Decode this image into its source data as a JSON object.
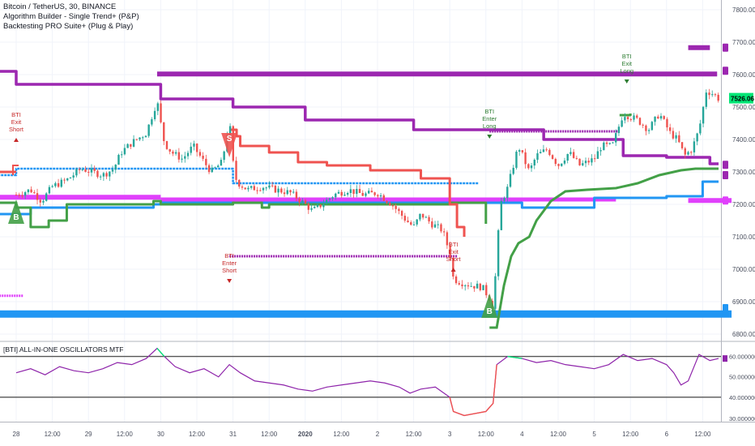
{
  "legend": {
    "symbol": "Bitcoin / TetherUS, 30, BINANCE",
    "indicator1": "Algorithm Builder - Single Trend+ (P&P)",
    "indicator2": "Backtesting PRO Suite+ (Plug & Play)",
    "oscillator": "[BTI] ALL-IN-ONE OSCILLATORS MTF"
  },
  "colors": {
    "purple": "#9c27b0",
    "magenta": "#e040fb",
    "blue": "#2196f3",
    "green": "#43a047",
    "red": "#ef5350",
    "dark_red": "#c62828",
    "osc_purple": "#8e24aa",
    "price_tag": "#00e676",
    "grid": "#f0f3fa",
    "axis_text": "#4a4f5e"
  },
  "chart_data": [
    {
      "type": "candlestick",
      "title": "Bitcoin / TetherUS, 30, BINANCE",
      "price_axis_ticks": [
        6800,
        6900,
        7000,
        7100,
        7200,
        7300,
        7400,
        7500,
        7600,
        7700,
        7800
      ],
      "price_axis_labels": [
        "6800.00",
        "6900.00",
        "7000.00",
        "7100.00",
        "7200.00",
        "7300.00",
        "7400.00",
        "7500.00",
        "7600.00",
        "7700.00",
        "7800.00"
      ],
      "last_price": "7526.06",
      "ylim": [
        6780,
        7830
      ],
      "x_tick_labels": [
        "28",
        "12:00",
        "29",
        "12:00",
        "30",
        "12:00",
        "31",
        "12:00",
        "2020",
        "12:00",
        "2",
        "12:00",
        "3",
        "12:00",
        "4",
        "12:00",
        "5",
        "12:00",
        "6",
        "12:00"
      ],
      "x_tick_days": [
        0,
        0.5,
        1,
        1.5,
        2,
        2.5,
        3,
        3.5,
        4,
        4.5,
        5,
        5.5,
        6,
        6.5,
        7,
        7.5,
        8,
        8.5,
        9,
        9.5
      ],
      "price_path": [
        [
          0.0,
          7230
        ],
        [
          0.2,
          7245
        ],
        [
          0.35,
          7210
        ],
        [
          0.5,
          7255
        ],
        [
          0.7,
          7275
        ],
        [
          0.9,
          7310
        ],
        [
          1.05,
          7300
        ],
        [
          1.2,
          7290
        ],
        [
          1.35,
          7310
        ],
        [
          1.45,
          7360
        ],
        [
          1.6,
          7390
        ],
        [
          1.8,
          7420
        ],
        [
          1.95,
          7520
        ],
        [
          2.0,
          7450
        ],
        [
          2.05,
          7390
        ],
        [
          2.15,
          7360
        ],
        [
          2.3,
          7340
        ],
        [
          2.45,
          7380
        ],
        [
          2.6,
          7330
        ],
        [
          2.7,
          7300
        ],
        [
          2.85,
          7330
        ],
        [
          2.95,
          7460
        ],
        [
          3.0,
          7330
        ],
        [
          3.05,
          7270
        ],
        [
          3.2,
          7245
        ],
        [
          3.4,
          7255
        ],
        [
          3.6,
          7245
        ],
        [
          3.8,
          7235
        ],
        [
          4.0,
          7200
        ],
        [
          4.1,
          7180
        ],
        [
          4.2,
          7195
        ],
        [
          4.4,
          7230
        ],
        [
          4.6,
          7245
        ],
        [
          4.8,
          7230
        ],
        [
          5.0,
          7235
        ],
        [
          5.2,
          7200
        ],
        [
          5.4,
          7150
        ],
        [
          5.5,
          7130
        ],
        [
          5.6,
          7170
        ],
        [
          5.75,
          7140
        ],
        [
          5.9,
          7120
        ],
        [
          6.0,
          7050
        ],
        [
          6.05,
          6970
        ],
        [
          6.15,
          6960
        ],
        [
          6.3,
          6950
        ],
        [
          6.45,
          6945
        ],
        [
          6.55,
          6910
        ],
        [
          6.6,
          6880
        ],
        [
          6.7,
          7200
        ],
        [
          6.8,
          7250
        ],
        [
          6.95,
          7380
        ],
        [
          7.1,
          7300
        ],
        [
          7.2,
          7350
        ],
        [
          7.35,
          7370
        ],
        [
          7.5,
          7320
        ],
        [
          7.65,
          7360
        ],
        [
          7.8,
          7320
        ],
        [
          8.0,
          7340
        ],
        [
          8.1,
          7380
        ],
        [
          8.25,
          7380
        ],
        [
          8.4,
          7480
        ],
        [
          8.6,
          7460
        ],
        [
          8.75,
          7430
        ],
        [
          8.9,
          7480
        ],
        [
          9.05,
          7420
        ],
        [
          9.15,
          7400
        ],
        [
          9.25,
          7350
        ],
        [
          9.35,
          7370
        ],
        [
          9.45,
          7430
        ],
        [
          9.55,
          7550
        ],
        [
          9.65,
          7540
        ],
        [
          9.72,
          7526
        ]
      ],
      "annotations": [
        {
          "text": [
            "BTI",
            "Exit",
            "Short"
          ],
          "day": 0.0,
          "price": 7470,
          "arrow": "up",
          "color": "#c62828"
        },
        {
          "text": [
            "BTI",
            "Enter",
            "Short"
          ],
          "day": 2.95,
          "price": 7035,
          "arrow": "down",
          "color": "#c62828"
        },
        {
          "text": [
            "BTI",
            "Exit",
            "Short"
          ],
          "day": 6.05,
          "price": 7070,
          "arrow": "up",
          "color": "#c62828"
        },
        {
          "text": [
            "BTI",
            "Enter",
            "Long"
          ],
          "day": 6.55,
          "price": 7480,
          "arrow": "down",
          "color": "#2e7d32"
        },
        {
          "text": [
            "BTI",
            "Exit",
            "Long"
          ],
          "day": 8.45,
          "price": 7650,
          "arrow": "down",
          "color": "#2e7d32"
        }
      ],
      "signals": [
        {
          "label": "B",
          "day": 0.0,
          "price": 7160,
          "color": "#43a047"
        },
        {
          "label": "S",
          "day": 2.95,
          "price": 7400,
          "color": "#ef5350"
        },
        {
          "label": "B",
          "day": 6.55,
          "price": 6870,
          "color": "#43a047"
        }
      ]
    },
    {
      "type": "line",
      "title": "[BTI] ALL-IN-ONE OSCILLATORS MTF",
      "axis_labels": [
        "40.000000",
        "50.000000",
        "60.000000"
      ],
      "axis_ticks": [
        40,
        50,
        60
      ],
      "ylim": [
        28,
        67
      ],
      "levels": [
        40,
        60
      ],
      "bottom_partial_label": "30.000000",
      "values": [
        [
          0.0,
          52
        ],
        [
          0.2,
          54
        ],
        [
          0.4,
          51
        ],
        [
          0.6,
          55
        ],
        [
          0.8,
          53
        ],
        [
          1.0,
          52
        ],
        [
          1.2,
          54
        ],
        [
          1.4,
          57
        ],
        [
          1.6,
          56
        ],
        [
          1.8,
          59
        ],
        [
          1.95,
          64
        ],
        [
          2.05,
          60
        ],
        [
          2.2,
          55
        ],
        [
          2.4,
          52
        ],
        [
          2.6,
          54
        ],
        [
          2.8,
          50
        ],
        [
          2.95,
          56
        ],
        [
          3.1,
          52
        ],
        [
          3.3,
          48
        ],
        [
          3.5,
          47
        ],
        [
          3.7,
          46
        ],
        [
          3.9,
          44
        ],
        [
          4.1,
          43
        ],
        [
          4.3,
          45
        ],
        [
          4.5,
          46
        ],
        [
          4.7,
          47
        ],
        [
          4.9,
          48
        ],
        [
          5.1,
          47
        ],
        [
          5.3,
          45
        ],
        [
          5.45,
          42
        ],
        [
          5.6,
          44
        ],
        [
          5.8,
          45
        ],
        [
          6.0,
          40
        ],
        [
          6.05,
          33
        ],
        [
          6.2,
          31
        ],
        [
          6.35,
          32
        ],
        [
          6.5,
          33
        ],
        [
          6.6,
          37
        ],
        [
          6.65,
          56
        ],
        [
          6.8,
          60
        ],
        [
          7.0,
          59
        ],
        [
          7.2,
          57
        ],
        [
          7.4,
          58
        ],
        [
          7.6,
          56
        ],
        [
          7.8,
          55
        ],
        [
          8.0,
          54
        ],
        [
          8.2,
          56
        ],
        [
          8.4,
          61
        ],
        [
          8.6,
          58
        ],
        [
          8.8,
          59
        ],
        [
          9.0,
          56
        ],
        [
          9.1,
          52
        ],
        [
          9.2,
          46
        ],
        [
          9.3,
          48
        ],
        [
          9.45,
          61
        ],
        [
          9.6,
          58
        ],
        [
          9.72,
          59
        ]
      ]
    }
  ]
}
